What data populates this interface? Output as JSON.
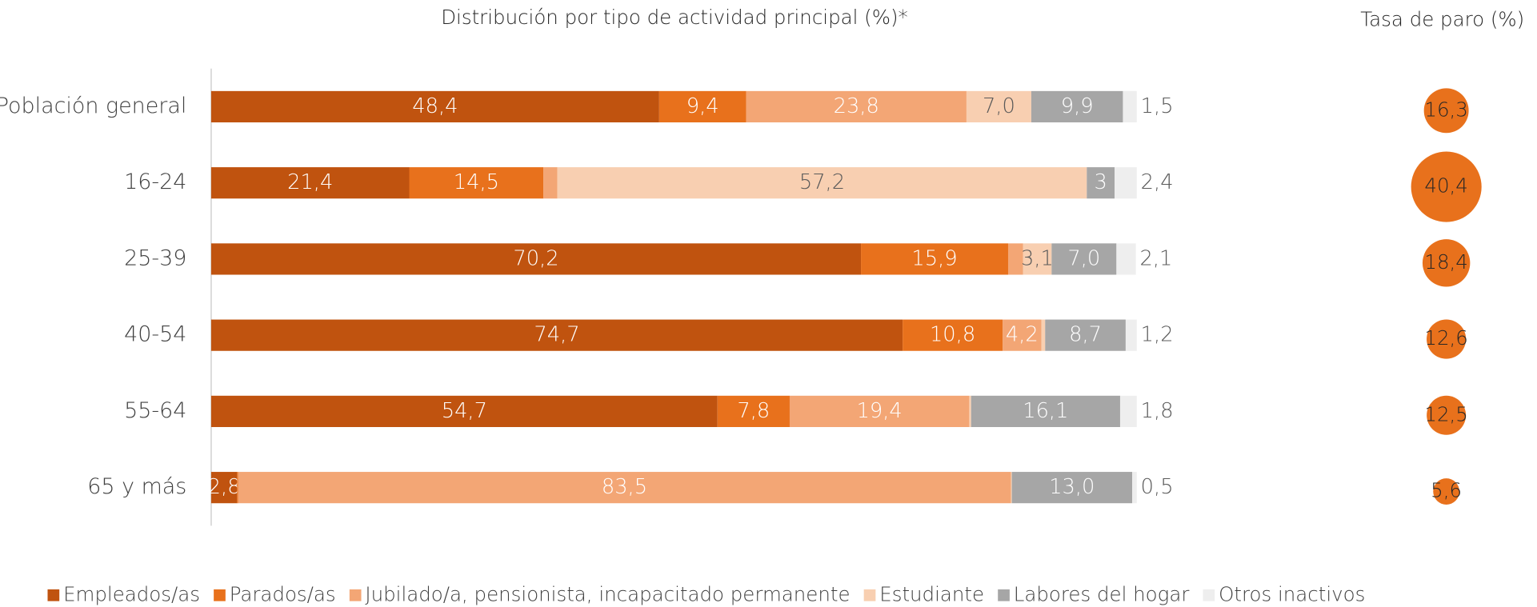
{
  "chart_data": [
    {
      "type": "stacked-bar-horizontal",
      "title": "Distribución por tipo de actividad principal (%)*",
      "categories": [
        "Población general",
        "16-24",
        "25-39",
        "40-54",
        "55-64",
        "65 y más"
      ],
      "xlim": [
        0,
        100
      ],
      "legend": "bottom",
      "series": [
        {
          "name": "Empleados/as",
          "color": "#c0530f",
          "values": [
            48.4,
            21.4,
            70.2,
            74.7,
            54.7,
            2.8
          ],
          "value_labels": [
            "48,4",
            "21,4",
            "70,2",
            "74,7",
            "54,7",
            "2,8"
          ]
        },
        {
          "name": "Parados/as",
          "color": "#e8711c",
          "values": [
            9.4,
            14.5,
            15.9,
            10.8,
            7.8,
            0.1
          ],
          "value_labels": [
            "9,4",
            "14,5",
            "15,9",
            "10,8",
            "7,8",
            null
          ]
        },
        {
          "name": "Jubilado/a, pensionista, incapacitado permanente",
          "color": "#f3a675",
          "values": [
            23.8,
            1.5,
            1.6,
            4.2,
            19.4,
            83.5
          ],
          "value_labels": [
            "23,8",
            null,
            null,
            "4,2",
            "19,4",
            "83,5"
          ]
        },
        {
          "name": "Estudiante",
          "color": "#f8cfb1",
          "values": [
            7.0,
            57.2,
            3.1,
            0.4,
            0.2,
            0.1
          ],
          "value_labels": [
            "7,0",
            "57,2",
            "3,1",
            null,
            null,
            null
          ]
        },
        {
          "name": "Labores del hogar",
          "color": "#a6a6a6",
          "values": [
            9.9,
            3,
            7.0,
            8.7,
            16.1,
            13.0
          ],
          "value_labels": [
            "9,9",
            "3",
            "7,0",
            "8,7",
            "16,1",
            "13,0"
          ]
        },
        {
          "name": "Otros inactivos",
          "color": "#eeeeee",
          "values": [
            1.5,
            2.4,
            2.1,
            1.2,
            1.8,
            0.5
          ],
          "value_labels": [
            "1,5",
            "2,4",
            "2,1",
            "1,2",
            "1,8",
            "0,5"
          ]
        }
      ]
    },
    {
      "type": "bubble",
      "title": "Tasa de paro (%)",
      "color": "#e8711c",
      "values": [
        16.3,
        40.4,
        18.4,
        12.6,
        12.5,
        5.6
      ],
      "value_labels": [
        "16,3",
        "40,4",
        "18,4",
        "12,6",
        "12,5",
        "5,6"
      ]
    }
  ]
}
